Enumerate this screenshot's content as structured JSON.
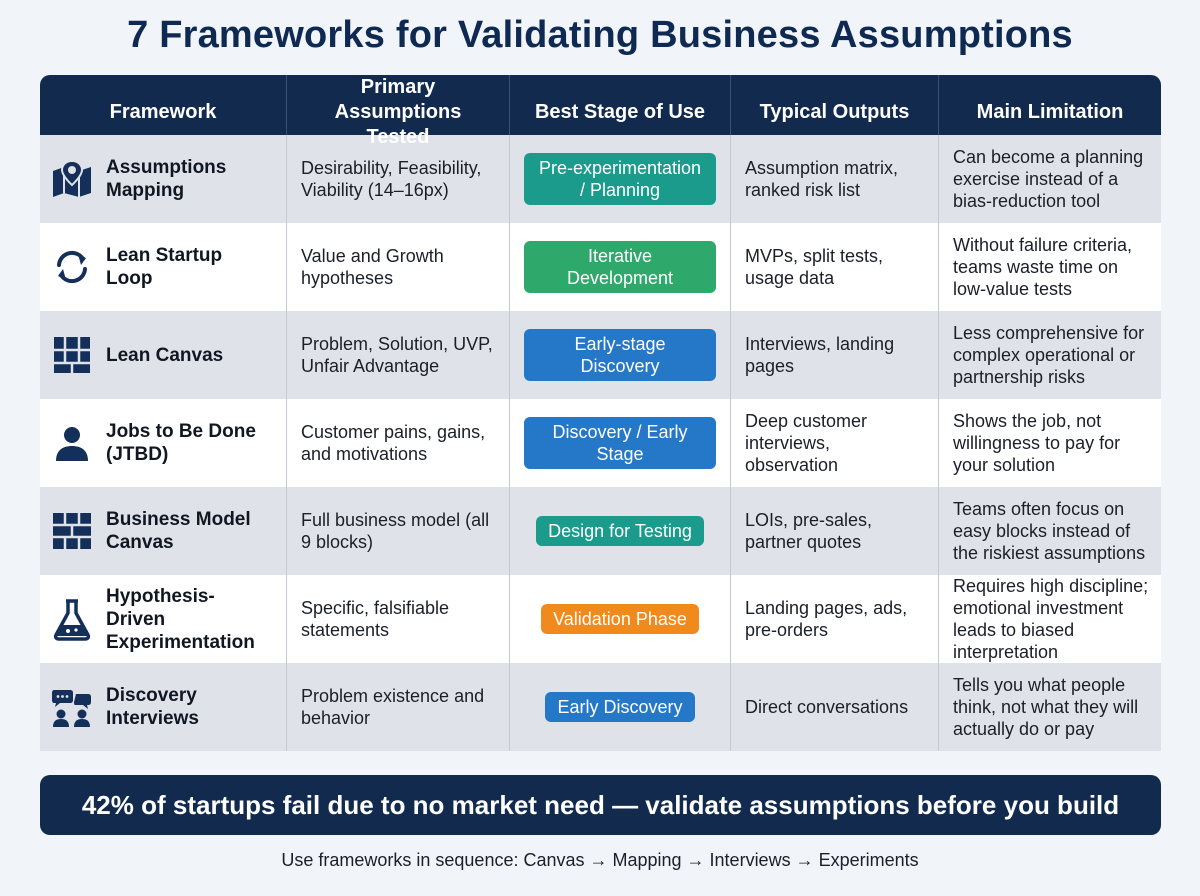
{
  "title": "7 Frameworks for Validating Business Assumptions",
  "headers": {
    "framework": "Framework",
    "assumptions": "Primary Assumptions Tested",
    "stage": "Best Stage of Use",
    "outputs": "Typical Outputs",
    "limitation": "Main Limitation"
  },
  "rows": [
    {
      "icon": "map-pin-icon",
      "framework": "Assumptions Mapping",
      "assumptions": "Desirability, Feasibility, Viability (14–16px)",
      "stage": "Pre-experimentation / Planning",
      "stage_color": "#1a9b8c",
      "outputs": "Assumption matrix, ranked risk list",
      "limitation": "Can become a planning exercise instead of a bias-reduction tool"
    },
    {
      "icon": "refresh-cycle-icon",
      "framework": "Lean Startup Loop",
      "assumptions": "Value and Growth hypotheses",
      "stage": "Iterative Development",
      "stage_color": "#2fa96b",
      "outputs": "MVPs, split tests, usage data",
      "limitation": "Without failure criteria, teams waste time on low-value tests"
    },
    {
      "icon": "canvas-grid-icon",
      "framework": "Lean Canvas",
      "assumptions": "Problem, Solution, UVP, Unfair Advantage",
      "stage": "Early-stage Discovery",
      "stage_color": "#2478c7",
      "outputs": "Interviews, landing pages",
      "limitation": "Less comprehensive for complex operational or partnership risks"
    },
    {
      "icon": "person-icon",
      "framework": "Jobs to Be Done (JTBD)",
      "assumptions": "Customer pains, gains, and motivations",
      "stage": "Discovery / Early Stage",
      "stage_color": "#2478c7",
      "outputs": "Deep customer interviews, observation",
      "limitation": "Shows the job, not willingness to pay for your solution"
    },
    {
      "icon": "blocks-grid-icon",
      "framework": "Business Model Canvas",
      "assumptions": "Full business model (all 9 blocks)",
      "stage": "Design for Testing",
      "stage_color": "#1a9b8c",
      "outputs": "LOIs, pre-sales, partner quotes",
      "limitation": "Teams often focus on easy blocks instead of the riskiest assumptions"
    },
    {
      "icon": "flask-icon",
      "framework": "Hypothesis-Driven Experimentation",
      "assumptions": "Specific, falsifiable statements",
      "stage": "Validation Phase",
      "stage_color": "#f08a1c",
      "outputs": "Landing pages, ads, pre-orders",
      "limitation": "Requires high discipline; emotional investment leads to biased interpretation"
    },
    {
      "icon": "conversation-icon",
      "framework": "Discovery Interviews",
      "assumptions": "Problem existence and behavior",
      "stage": "Early Discovery",
      "stage_color": "#2478c7",
      "outputs": "Direct conversations",
      "limitation": "Tells you what people think, not what they will actually do or pay"
    }
  ],
  "banner": "42% of startups fail due to no market need — validate assumptions before you build",
  "footer": "Use frameworks in sequence: Canvas → Mapping → Interviews → Experiments",
  "colors": {
    "navy": "#112a4e",
    "row_shade": "#dfe3e9",
    "icon": "#14305a"
  }
}
